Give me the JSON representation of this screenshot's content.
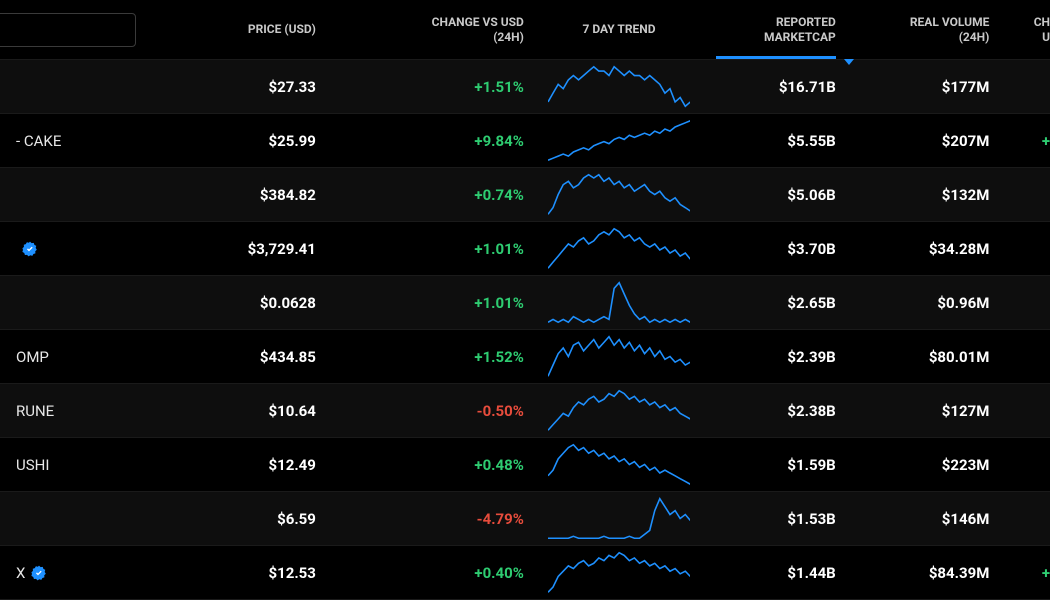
{
  "colors": {
    "positive": "#2ecc71",
    "negative": "#e74c3c",
    "sparkline": "#1e90ff",
    "badge": "#1e90ff",
    "header_text": "#c9c9c9",
    "row_odd_bg": "#0e0e0e",
    "row_even_bg": "#000000",
    "border": "#1a1a1a"
  },
  "columns": {
    "name": "",
    "price_l1": "PRICE (USD)",
    "change_l1": "CHANGE VS USD",
    "change_l2": "(24H)",
    "trend_l1": "7 DAY TREND",
    "mcap_l1": "REPORTED",
    "mcap_l2": "MARKETCAP",
    "vol_l1": "REAL VOLUME",
    "vol_l2": "(24H)",
    "extra_l1": "CH",
    "extra_l2": "U"
  },
  "sort": {
    "column": "mcap",
    "direction": "desc"
  },
  "spark_style": {
    "stroke": "#1e90ff",
    "stroke_width": 1.6
  },
  "rows": [
    {
      "name": "",
      "badge": false,
      "price": "$27.33",
      "change": "+1.51%",
      "change_dir": "pos",
      "mcap": "$16.71B",
      "vol": "$177M",
      "spark": [
        12,
        10,
        8,
        9,
        7,
        6,
        7,
        6,
        5,
        4,
        5,
        5,
        6,
        4,
        5,
        6,
        5,
        6,
        6,
        7,
        6,
        7,
        8,
        10,
        9,
        12,
        11,
        13,
        12
      ]
    },
    {
      "name": "- CAKE",
      "badge": false,
      "price": "$25.99",
      "change": "+9.84%",
      "change_dir": "pos",
      "mcap": "$5.55B",
      "vol": "$207M",
      "extra": "+",
      "spark": [
        22,
        21,
        20,
        19,
        20,
        18,
        17,
        16,
        17,
        15,
        14,
        13,
        14,
        12,
        11,
        12,
        10,
        11,
        10,
        9,
        10,
        8,
        9,
        7,
        8,
        6,
        5,
        4,
        3
      ]
    },
    {
      "name": "",
      "badge": false,
      "price": "$384.82",
      "change": "+0.74%",
      "change_dir": "pos",
      "mcap": "$5.06B",
      "vol": "$132M",
      "spark": [
        16,
        14,
        10,
        7,
        6,
        8,
        7,
        5,
        4,
        5,
        4,
        6,
        5,
        7,
        6,
        8,
        7,
        9,
        8,
        7,
        9,
        10,
        9,
        11,
        12,
        11,
        13,
        14,
        15
      ]
    },
    {
      "name": "",
      "badge": true,
      "price": "$3,729.41",
      "change": "+1.01%",
      "change_dir": "pos",
      "mcap": "$3.70B",
      "vol": "$34.28M",
      "spark": [
        18,
        16,
        14,
        12,
        10,
        11,
        9,
        8,
        10,
        9,
        7,
        6,
        7,
        5,
        6,
        8,
        7,
        9,
        8,
        10,
        11,
        10,
        12,
        11,
        13,
        12,
        14,
        13,
        15
      ]
    },
    {
      "name": "",
      "badge": false,
      "price": "$0.0628",
      "change": "+1.01%",
      "change_dir": "pos",
      "mcap": "$2.65B",
      "vol": "$0.96M",
      "spark": [
        18,
        17,
        18,
        17,
        18,
        16,
        17,
        18,
        17,
        18,
        17,
        16,
        17,
        6,
        4,
        8,
        12,
        15,
        17,
        16,
        18,
        17,
        18,
        17,
        18,
        17,
        18,
        17,
        18
      ]
    },
    {
      "name": "OMP",
      "badge": false,
      "price": "$434.85",
      "change": "+1.52%",
      "change_dir": "pos",
      "mcap": "$2.39B",
      "vol": "$80.01M",
      "spark": [
        18,
        14,
        10,
        8,
        11,
        7,
        6,
        9,
        7,
        5,
        8,
        6,
        4,
        7,
        5,
        8,
        6,
        9,
        7,
        10,
        8,
        11,
        9,
        12,
        11,
        13,
        12,
        14,
        13
      ]
    },
    {
      "name": "RUNE",
      "badge": false,
      "price": "$10.64",
      "change": "-0.50%",
      "change_dir": "neg",
      "mcap": "$2.38B",
      "vol": "$127M",
      "spark": [
        20,
        18,
        16,
        14,
        15,
        12,
        10,
        11,
        9,
        8,
        10,
        9,
        7,
        8,
        6,
        7,
        9,
        8,
        10,
        9,
        11,
        10,
        12,
        11,
        13,
        12,
        14,
        15,
        16
      ]
    },
    {
      "name": "USHI",
      "badge": false,
      "price": "$12.49",
      "change": "+0.48%",
      "change_dir": "pos",
      "mcap": "$1.59B",
      "vol": "$223M",
      "spark": [
        16,
        14,
        10,
        8,
        6,
        5,
        7,
        6,
        8,
        7,
        9,
        8,
        10,
        9,
        11,
        10,
        12,
        11,
        13,
        12,
        14,
        13,
        15,
        14,
        15,
        16,
        17,
        18,
        19
      ]
    },
    {
      "name": "",
      "badge": false,
      "price": "$6.59",
      "change": "-4.79%",
      "change_dir": "neg",
      "mcap": "$1.53B",
      "vol": "$146M",
      "spark": [
        24,
        24,
        24,
        24,
        24,
        23,
        24,
        24,
        24,
        24,
        24,
        23,
        24,
        24,
        24,
        24,
        23,
        24,
        24,
        22,
        20,
        10,
        4,
        8,
        12,
        10,
        14,
        12,
        15
      ]
    },
    {
      "name": "X",
      "badge": true,
      "price": "$12.53",
      "change": "+0.40%",
      "change_dir": "pos",
      "mcap": "$1.44B",
      "vol": "$84.39M",
      "extra": "+",
      "spark": [
        20,
        18,
        14,
        12,
        10,
        11,
        9,
        8,
        10,
        9,
        7,
        8,
        6,
        7,
        5,
        6,
        8,
        7,
        9,
        8,
        10,
        9,
        11,
        10,
        12,
        11,
        13,
        12,
        14
      ]
    }
  ]
}
